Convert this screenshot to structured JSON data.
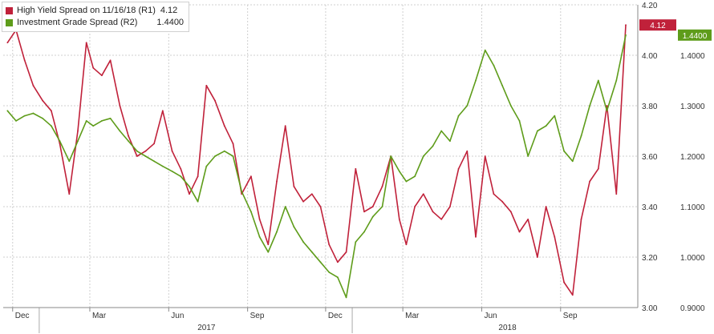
{
  "colors": {
    "high_yield": "#c0213a",
    "investment_grade": "#5e9c1a",
    "grid": "#cfcfcf",
    "axis_text": "#333333"
  },
  "legend": {
    "position": "top-left",
    "items": [
      {
        "label": "High Yield Spread on 11/16/18 (R1)",
        "value": "4.12",
        "color": "#c0213a"
      },
      {
        "label": "Investment Grade Spread (R2)",
        "value": "1.4400",
        "color": "#5e9c1a"
      }
    ]
  },
  "chart_data": {
    "type": "line",
    "title": "",
    "xlabel": "",
    "x_ticks": [
      "Dec",
      "Mar",
      "Jun",
      "Sep",
      "Dec",
      "Mar",
      "Jun",
      "Sep"
    ],
    "years": [
      "2017",
      "2018"
    ],
    "y_axis_r1": {
      "min": 3.0,
      "max": 4.2,
      "ticks": [
        "3.00",
        "3.20",
        "3.40",
        "3.60",
        "3.80",
        "4.00",
        "4.20"
      ]
    },
    "y_axis_r2": {
      "min": 0.9,
      "max": 1.5,
      "ticks": [
        "0.9000",
        "1.0000",
        "1.1000",
        "1.2000",
        "1.3000",
        "1.4000"
      ]
    },
    "grid": true,
    "last_values": {
      "high_yield": "4.12",
      "investment_grade": "1.4400"
    },
    "series": [
      {
        "name": "High Yield Spread on 11/16/18 (R1)",
        "axis": "R1",
        "color": "#c0213a",
        "x": [
          "2016-11-25",
          "2016-12-05",
          "2016-12-15",
          "2016-12-25",
          "2017-01-05",
          "2017-01-15",
          "2017-01-25",
          "2017-02-05",
          "2017-02-15",
          "2017-02-25",
          "2017-03-05",
          "2017-03-15",
          "2017-03-25",
          "2017-04-05",
          "2017-04-15",
          "2017-04-25",
          "2017-05-05",
          "2017-05-15",
          "2017-05-25",
          "2017-06-05",
          "2017-06-15",
          "2017-06-25",
          "2017-07-05",
          "2017-07-15",
          "2017-07-25",
          "2017-08-05",
          "2017-08-15",
          "2017-08-25",
          "2017-09-05",
          "2017-09-15",
          "2017-09-25",
          "2017-10-05",
          "2017-10-15",
          "2017-10-25",
          "2017-11-05",
          "2017-11-15",
          "2017-11-25",
          "2017-12-05",
          "2017-12-15",
          "2017-12-25",
          "2018-01-05",
          "2018-01-15",
          "2018-01-25",
          "2018-02-05",
          "2018-02-15",
          "2018-02-25",
          "2018-03-05",
          "2018-03-15",
          "2018-03-25",
          "2018-04-05",
          "2018-04-15",
          "2018-04-25",
          "2018-05-05",
          "2018-05-15",
          "2018-05-25",
          "2018-06-05",
          "2018-06-15",
          "2018-06-25",
          "2018-07-05",
          "2018-07-15",
          "2018-07-25",
          "2018-08-05",
          "2018-08-15",
          "2018-08-25",
          "2018-09-05",
          "2018-09-15",
          "2018-09-25",
          "2018-10-05",
          "2018-10-15",
          "2018-10-25",
          "2018-11-05",
          "2018-11-16"
        ],
        "values": [
          4.05,
          4.1,
          3.98,
          3.88,
          3.82,
          3.78,
          3.65,
          3.45,
          3.7,
          4.05,
          3.95,
          3.92,
          3.98,
          3.8,
          3.68,
          3.6,
          3.62,
          3.65,
          3.78,
          3.62,
          3.55,
          3.45,
          3.52,
          3.88,
          3.82,
          3.72,
          3.65,
          3.45,
          3.52,
          3.35,
          3.25,
          3.5,
          3.72,
          3.48,
          3.42,
          3.45,
          3.4,
          3.25,
          3.18,
          3.22,
          3.55,
          3.38,
          3.4,
          3.48,
          3.6,
          3.35,
          3.25,
          3.4,
          3.45,
          3.38,
          3.35,
          3.4,
          3.55,
          3.62,
          3.28,
          3.6,
          3.45,
          3.42,
          3.38,
          3.3,
          3.35,
          3.2,
          3.4,
          3.28,
          3.1,
          3.05,
          3.35,
          3.5,
          3.55,
          3.8,
          3.45,
          4.12
        ]
      },
      {
        "name": "Investment Grade Spread (R2)",
        "axis": "R2",
        "color": "#5e9c1a",
        "x": [
          "2016-11-25",
          "2016-12-05",
          "2016-12-15",
          "2016-12-25",
          "2017-01-05",
          "2017-01-15",
          "2017-01-25",
          "2017-02-05",
          "2017-02-15",
          "2017-02-25",
          "2017-03-05",
          "2017-03-15",
          "2017-03-25",
          "2017-04-05",
          "2017-04-15",
          "2017-04-25",
          "2017-05-05",
          "2017-05-15",
          "2017-05-25",
          "2017-06-05",
          "2017-06-15",
          "2017-06-25",
          "2017-07-05",
          "2017-07-15",
          "2017-07-25",
          "2017-08-05",
          "2017-08-15",
          "2017-08-25",
          "2017-09-05",
          "2017-09-15",
          "2017-09-25",
          "2017-10-05",
          "2017-10-15",
          "2017-10-25",
          "2017-11-05",
          "2017-11-15",
          "2017-11-25",
          "2017-12-05",
          "2017-12-15",
          "2017-12-25",
          "2018-01-05",
          "2018-01-15",
          "2018-01-25",
          "2018-02-05",
          "2018-02-15",
          "2018-02-25",
          "2018-03-05",
          "2018-03-15",
          "2018-03-25",
          "2018-04-05",
          "2018-04-15",
          "2018-04-25",
          "2018-05-05",
          "2018-05-15",
          "2018-05-25",
          "2018-06-05",
          "2018-06-15",
          "2018-06-25",
          "2018-07-05",
          "2018-07-15",
          "2018-07-25",
          "2018-08-05",
          "2018-08-15",
          "2018-08-25",
          "2018-09-05",
          "2018-09-15",
          "2018-09-25",
          "2018-10-05",
          "2018-10-15",
          "2018-10-25",
          "2018-11-05",
          "2018-11-16"
        ],
        "values": [
          1.29,
          1.27,
          1.28,
          1.285,
          1.275,
          1.26,
          1.23,
          1.19,
          1.23,
          1.27,
          1.26,
          1.27,
          1.275,
          1.25,
          1.23,
          1.21,
          1.2,
          1.19,
          1.18,
          1.17,
          1.16,
          1.14,
          1.11,
          1.18,
          1.2,
          1.21,
          1.2,
          1.13,
          1.09,
          1.04,
          1.01,
          1.05,
          1.1,
          1.06,
          1.03,
          1.01,
          0.99,
          0.97,
          0.96,
          0.92,
          1.03,
          1.05,
          1.08,
          1.1,
          1.2,
          1.17,
          1.15,
          1.16,
          1.2,
          1.22,
          1.25,
          1.23,
          1.28,
          1.3,
          1.35,
          1.41,
          1.38,
          1.34,
          1.3,
          1.27,
          1.2,
          1.25,
          1.26,
          1.28,
          1.21,
          1.19,
          1.24,
          1.3,
          1.35,
          1.29,
          1.35,
          1.44
        ]
      }
    ]
  }
}
